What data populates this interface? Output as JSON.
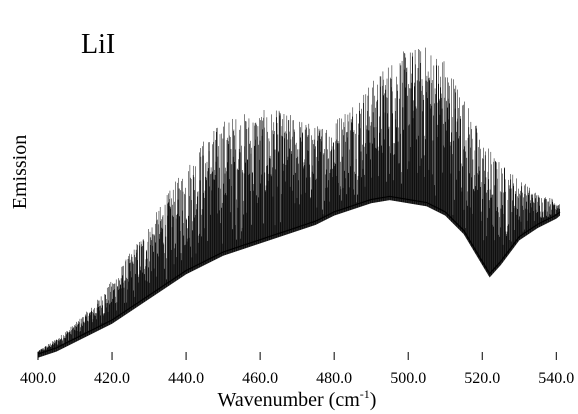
{
  "chart_data": {
    "type": "line",
    "title": "LiI",
    "xlabel": "Wavenumber (cm",
    "xlabel_sup": "-1",
    "xlabel_tail": ")",
    "ylabel": "Emission",
    "xlim": [
      400.0,
      541.0
    ],
    "x_ticks": [
      400.0,
      420.0,
      440.0,
      460.0,
      480.0,
      500.0,
      520.0,
      540.0
    ],
    "x_tick_labels": [
      "400.0",
      "420.0",
      "440.0",
      "460.0",
      "480.0",
      "500.0",
      "520.0",
      "540.0"
    ],
    "grid": false,
    "series": [
      {
        "style": "dense emission line spectrum",
        "baseline": {
          "x": [
            400,
            405,
            410,
            415,
            420,
            425,
            430,
            435,
            440,
            445,
            450,
            455,
            460,
            465,
            470,
            475,
            480,
            485,
            490,
            495,
            500,
            505,
            510,
            515,
            520,
            522,
            525,
            530,
            535,
            540,
            541
          ],
          "y": [
            0.0,
            0.02,
            0.05,
            0.08,
            0.11,
            0.15,
            0.19,
            0.23,
            0.27,
            0.3,
            0.33,
            0.35,
            0.37,
            0.39,
            0.41,
            0.43,
            0.46,
            0.48,
            0.5,
            0.51,
            0.5,
            0.49,
            0.46,
            0.4,
            0.3,
            0.26,
            0.3,
            0.38,
            0.42,
            0.45,
            0.46
          ]
        },
        "envelope": {
          "x": [
            400,
            405,
            410,
            415,
            420,
            425,
            430,
            435,
            440,
            445,
            450,
            455,
            460,
            465,
            470,
            475,
            480,
            485,
            490,
            495,
            500,
            505,
            510,
            515,
            520,
            525,
            530,
            535,
            540,
            541
          ],
          "y": [
            0.01,
            0.05,
            0.1,
            0.16,
            0.24,
            0.33,
            0.42,
            0.52,
            0.61,
            0.7,
            0.76,
            0.78,
            0.79,
            0.79,
            0.77,
            0.74,
            0.76,
            0.82,
            0.88,
            0.95,
            0.99,
            1.0,
            0.96,
            0.84,
            0.7,
            0.62,
            0.57,
            0.52,
            0.5,
            0.49
          ]
        }
      }
    ]
  }
}
